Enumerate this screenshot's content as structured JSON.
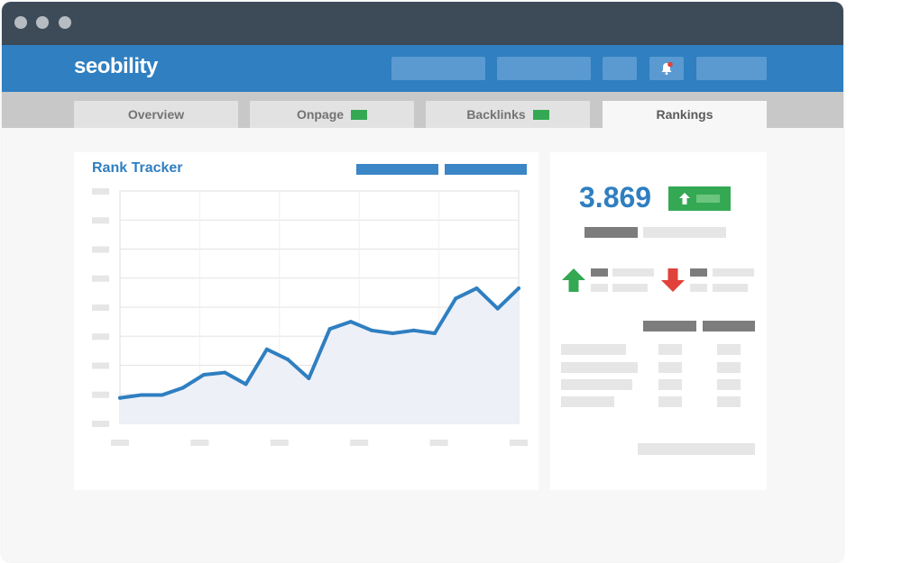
{
  "app": {
    "brand": "seobility"
  },
  "tabs": [
    {
      "label": "Overview",
      "badge": false,
      "active": false
    },
    {
      "label": "Onpage",
      "badge": true,
      "active": false
    },
    {
      "label": "Backlinks",
      "badge": true,
      "active": false
    },
    {
      "label": "Rankings",
      "badge": false,
      "active": true
    }
  ],
  "rank_tracker": {
    "title": "Rank Tracker"
  },
  "stats": {
    "value": "3.869",
    "trend": "up"
  },
  "icons": [
    "bell-icon",
    "arrow-up-icon",
    "arrow-down-icon"
  ],
  "colors": {
    "brand": "#2f7fc1",
    "header": "#3d4b59",
    "positive": "#34a853",
    "negative": "#e0413a"
  },
  "chart_data": {
    "type": "area",
    "title": "Rank Tracker",
    "x": [
      0,
      1,
      2,
      3,
      4,
      5,
      6,
      7,
      8,
      9,
      10,
      11,
      12,
      13,
      14,
      15,
      16,
      17,
      18,
      19
    ],
    "values": [
      17.5,
      19.5,
      19.5,
      24.5,
      33.5,
      35,
      27,
      51,
      44,
      31,
      65,
      70,
      64,
      62,
      64,
      62,
      86,
      93,
      79,
      93
    ],
    "ylim": [
      0,
      160
    ],
    "grid": true
  }
}
